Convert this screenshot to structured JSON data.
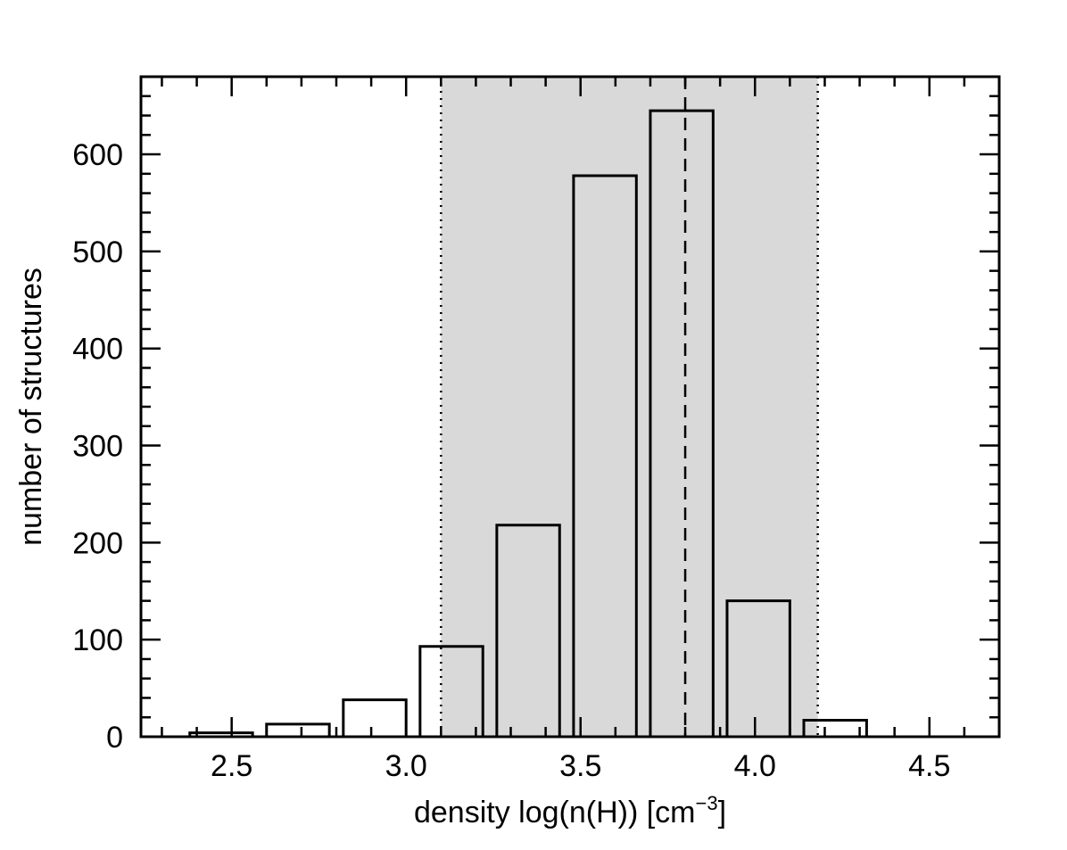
{
  "chart_data": {
    "type": "bar",
    "xlabel_main": "density log(n(H))  [cm",
    "xlabel_exponent": "−3",
    "xlabel_close": "]",
    "ylabel": "number of structures",
    "xlim": [
      2.24,
      4.7
    ],
    "ylim": [
      0,
      680
    ],
    "x_ticks": [
      2.5,
      3.0,
      3.5,
      4.0,
      4.5
    ],
    "x_tick_labels": [
      "2.5",
      "3.0",
      "3.5",
      "4.0",
      "4.5"
    ],
    "y_ticks": [
      0,
      100,
      200,
      300,
      400,
      500,
      600
    ],
    "y_tick_labels": [
      "0",
      "100",
      "200",
      "300",
      "400",
      "500",
      "600"
    ],
    "bins": [
      {
        "x0": 2.38,
        "x1": 2.56,
        "value": 4
      },
      {
        "x0": 2.6,
        "x1": 2.78,
        "value": 13
      },
      {
        "x0": 2.82,
        "x1": 3.0,
        "value": 38
      },
      {
        "x0": 3.04,
        "x1": 3.22,
        "value": 93
      },
      {
        "x0": 3.26,
        "x1": 3.44,
        "value": 218
      },
      {
        "x0": 3.48,
        "x1": 3.66,
        "value": 578
      },
      {
        "x0": 3.7,
        "x1": 3.88,
        "value": 645
      },
      {
        "x0": 3.92,
        "x1": 4.1,
        "value": 140
      },
      {
        "x0": 4.14,
        "x1": 4.32,
        "value": 17
      },
      {
        "x0": 4.36,
        "x1": 4.54,
        "value": 0
      }
    ],
    "shaded_range": [
      3.1,
      4.18
    ],
    "dotted_lines": [
      3.1,
      4.18
    ],
    "dashed_line": 3.8,
    "grid": false,
    "colors": {
      "shade": "#d9d9d9",
      "line": "#000000"
    }
  }
}
